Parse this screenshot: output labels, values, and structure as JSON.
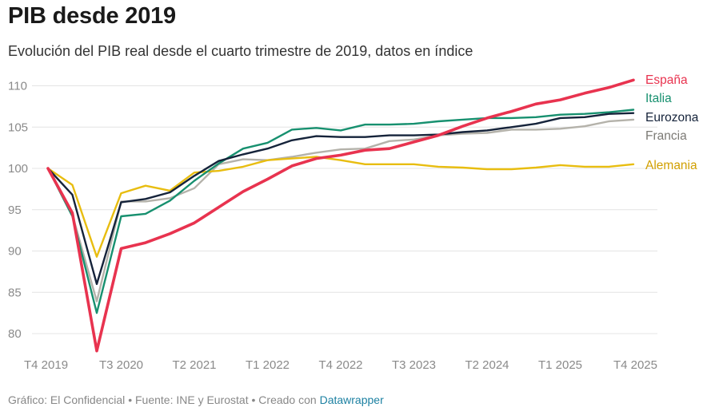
{
  "title": "PIB desde 2019",
  "subtitle": "Evolución del PIB real desde el cuarto trimestre de 2019, datos en índice",
  "footer": {
    "grafico": "Gráfico: El Confidencial",
    "fuente": "Fuente: INE y Eurostat",
    "creado": "Creado con",
    "tool": "Datawrapper",
    "sep": "•"
  },
  "chart_data": {
    "type": "line",
    "title": "PIB desde 2019",
    "xlabel": "",
    "ylabel": "",
    "ylim": [
      78,
      111
    ],
    "yticks": [
      80,
      85,
      90,
      95,
      100,
      105,
      110
    ],
    "grid": true,
    "x": [
      "T4 2019",
      "T1 2020",
      "T2 2020",
      "T3 2020",
      "T4 2020",
      "T1 2021",
      "T2 2021",
      "T3 2021",
      "T4 2021",
      "T1 2022",
      "T2 2022",
      "T3 2022",
      "T4 2022",
      "T1 2023",
      "T2 2023",
      "T3 2023",
      "T4 2023",
      "T1 2024",
      "T2 2024",
      "T3 2024",
      "T4 2024",
      "T1 2025",
      "T2 2025",
      "T3 2025",
      "T4 2025"
    ],
    "xtick_labels": [
      "T4 2019",
      "T3 2020",
      "T2 2021",
      "T1 2022",
      "T4 2022",
      "T3 2023",
      "T2 2024",
      "T1 2025",
      "T4 2025"
    ],
    "xtick_indices": [
      0,
      3,
      6,
      9,
      12,
      15,
      18,
      21,
      24
    ],
    "series": [
      {
        "name": "Francia",
        "color": "#b4b2aa",
        "values": [
          100,
          94.4,
          83.9,
          96.0,
          96.0,
          96.4,
          97.6,
          100.5,
          101.1,
          101.0,
          101.4,
          101.9,
          102.3,
          102.4,
          103.3,
          103.5,
          104.0,
          104.2,
          104.3,
          104.7,
          104.7,
          104.8,
          105.1,
          105.7,
          105.9
        ]
      },
      {
        "name": "Alemania",
        "color": "#e8bd10",
        "values": [
          100,
          98.0,
          89.3,
          97.0,
          97.9,
          97.3,
          99.5,
          99.7,
          100.2,
          101.0,
          101.2,
          101.4,
          101.0,
          100.5,
          100.5,
          100.5,
          100.2,
          100.1,
          99.9,
          99.9,
          100.1,
          100.4,
          100.2,
          100.2,
          100.5
        ]
      },
      {
        "name": "Italia",
        "color": "#17906f",
        "values": [
          100,
          94.2,
          82.5,
          94.2,
          94.5,
          96.1,
          98.5,
          100.6,
          102.4,
          103.1,
          104.7,
          104.9,
          104.6,
          105.3,
          105.3,
          105.4,
          105.7,
          105.9,
          106.1,
          106.1,
          106.2,
          106.5,
          106.6,
          106.8,
          107.1
        ]
      },
      {
        "name": "Eurozona",
        "color": "#15233a",
        "values": [
          100,
          96.8,
          86.0,
          95.9,
          96.3,
          97.1,
          99.1,
          100.9,
          101.7,
          102.4,
          103.4,
          103.9,
          103.8,
          103.8,
          104.0,
          104.0,
          104.1,
          104.4,
          104.6,
          105.0,
          105.4,
          106.1,
          106.2,
          106.6,
          106.7
        ]
      },
      {
        "name": "España",
        "color": "#e8334f",
        "values": [
          100,
          94.6,
          77.9,
          90.3,
          91.0,
          92.1,
          93.4,
          95.3,
          97.2,
          98.7,
          100.3,
          101.2,
          101.6,
          102.2,
          102.4,
          103.2,
          104.0,
          105.1,
          106.1,
          106.9,
          107.8,
          108.3,
          109.1,
          109.8,
          110.7
        ]
      }
    ],
    "legend": [
      {
        "name": "España",
        "color": "#e8334f"
      },
      {
        "name": "Italia",
        "color": "#17906f"
      },
      {
        "name": "Eurozona",
        "color": "#15233a"
      },
      {
        "name": "Francia",
        "color": "#7c7a75"
      },
      {
        "name": "Alemania",
        "color": "#d19f00"
      }
    ]
  }
}
